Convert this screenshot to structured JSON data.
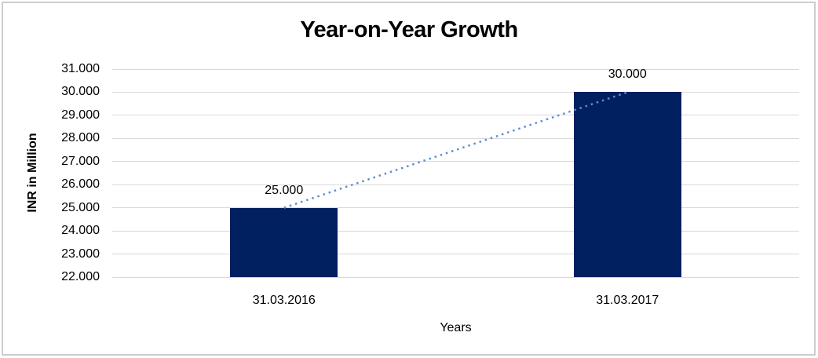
{
  "chart_data": {
    "type": "bar",
    "title": "Year-on-Year Growth",
    "xlabel": "Years",
    "ylabel": "INR in Million",
    "categories": [
      "31.03.2016",
      "31.03.2017"
    ],
    "values": [
      25000,
      30000
    ],
    "data_labels": [
      "25.000",
      "30.000"
    ],
    "ylim": [
      22000,
      31000
    ],
    "ytick_step": 1000,
    "ytick_labels": [
      "22.000",
      "23.000",
      "24.000",
      "25.000",
      "26.000",
      "27.000",
      "28.000",
      "29.000",
      "30.000",
      "31.000"
    ],
    "grid": true,
    "legend": "none",
    "trendline_style": "dotted, connects tops of the two bars",
    "colors": {
      "bar": "#002060",
      "trendline": "#5b8fd0",
      "gridline": "#d9d9d9",
      "frame_border": "#cdcdcd",
      "text": "#000000"
    }
  }
}
